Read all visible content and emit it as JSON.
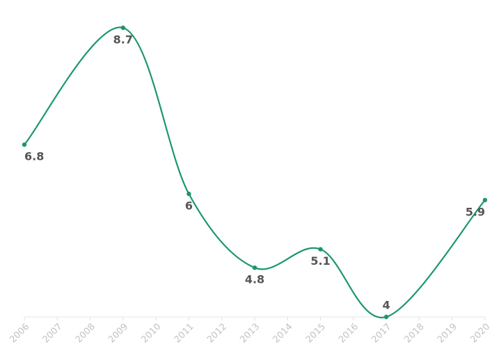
{
  "chart_data": {
    "type": "line",
    "x": [
      2006,
      2009,
      2011,
      2013,
      2015,
      2017,
      2020
    ],
    "series": [
      {
        "color": "#1a9670",
        "values": [
          6.8,
          8.7,
          6,
          4.8,
          5.1,
          4,
          5.9
        ]
      }
    ],
    "xlim": [
      2006,
      2020
    ],
    "xticks": [
      2006,
      2007,
      2008,
      2009,
      2010,
      2011,
      2012,
      2013,
      2014,
      2015,
      2016,
      2017,
      2018,
      2019,
      2020
    ],
    "data_labels": true
  }
}
